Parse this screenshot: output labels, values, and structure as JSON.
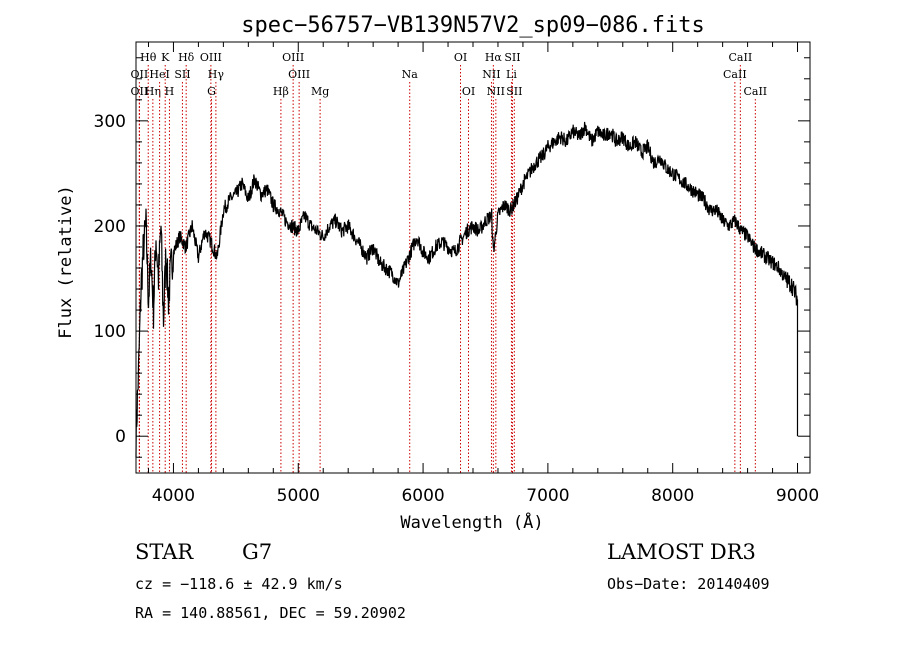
{
  "chart_data": {
    "type": "line",
    "title": "spec−56757−VB139N57V2_sp09−086.fits",
    "xlabel": "Wavelength (Å)",
    "ylabel": "Flux (relative)",
    "xlim": [
      3700,
      9100
    ],
    "ylim": [
      -35,
      375
    ],
    "xticks": [
      4000,
      5000,
      6000,
      7000,
      8000,
      9000
    ],
    "xtick_labels": [
      "4000",
      "5000",
      "6000",
      "7000",
      "8000",
      "9000"
    ],
    "yticks": [
      0,
      100,
      200,
      300
    ],
    "ytick_labels": [
      "0",
      "100",
      "200",
      "300"
    ],
    "series": [
      {
        "name": "flux",
        "x": [
          3700,
          3720,
          3740,
          3760,
          3780,
          3800,
          3820,
          3840,
          3860,
          3880,
          3900,
          3920,
          3940,
          3960,
          3980,
          4000,
          4050,
          4100,
          4150,
          4200,
          4250,
          4300,
          4350,
          4400,
          4450,
          4500,
          4550,
          4600,
          4650,
          4700,
          4750,
          4800,
          4850,
          4900,
          4950,
          5000,
          5050,
          5100,
          5150,
          5200,
          5250,
          5300,
          5350,
          5400,
          5450,
          5500,
          5550,
          5600,
          5650,
          5700,
          5750,
          5800,
          5850,
          5900,
          5950,
          6000,
          6050,
          6100,
          6150,
          6200,
          6250,
          6300,
          6350,
          6400,
          6450,
          6500,
          6550,
          6563,
          6600,
          6650,
          6700,
          6750,
          6800,
          6850,
          6900,
          6950,
          7000,
          7050,
          7100,
          7150,
          7200,
          7250,
          7300,
          7350,
          7400,
          7450,
          7500,
          7550,
          7600,
          7650,
          7700,
          7750,
          7800,
          7850,
          7900,
          7950,
          8000,
          8050,
          8100,
          8150,
          8200,
          8250,
          8300,
          8350,
          8400,
          8450,
          8500,
          8550,
          8600,
          8650,
          8700,
          8750,
          8800,
          8850,
          8900,
          8950,
          9000
        ],
        "y": [
          0,
          60,
          140,
          180,
          200,
          130,
          170,
          120,
          190,
          150,
          200,
          110,
          175,
          130,
          160,
          175,
          190,
          180,
          200,
          170,
          195,
          185,
          170,
          215,
          225,
          230,
          240,
          225,
          245,
          230,
          235,
          220,
          215,
          205,
          200,
          195,
          210,
          200,
          195,
          190,
          200,
          205,
          195,
          200,
          190,
          180,
          170,
          180,
          165,
          160,
          155,
          145,
          160,
          175,
          190,
          175,
          170,
          180,
          185,
          180,
          175,
          185,
          195,
          200,
          195,
          205,
          210,
          175,
          210,
          220,
          215,
          225,
          240,
          250,
          260,
          265,
          275,
          280,
          285,
          280,
          290,
          285,
          295,
          280,
          290,
          285,
          290,
          280,
          285,
          275,
          280,
          270,
          275,
          260,
          265,
          255,
          250,
          245,
          240,
          235,
          230,
          225,
          215,
          215,
          205,
          200,
          205,
          195,
          190,
          180,
          175,
          170,
          165,
          160,
          150,
          145,
          130
        ]
      }
    ],
    "spectral_lines": [
      {
        "label": "OII",
        "wavelength": 3727,
        "row": 2
      },
      {
        "label": "OII",
        "wavelength": 3727,
        "row": 3
      },
      {
        "label": "Hθ",
        "wavelength": 3798,
        "row": 1
      },
      {
        "label": "Hη",
        "wavelength": 3835,
        "row": 3
      },
      {
        "label": "HeI",
        "wavelength": 3889,
        "row": 2
      },
      {
        "label": "K",
        "wavelength": 3934,
        "row": 1
      },
      {
        "label": "H",
        "wavelength": 3968,
        "row": 3
      },
      {
        "label": "SII",
        "wavelength": 4072,
        "row": 2
      },
      {
        "label": "Hδ",
        "wavelength": 4102,
        "row": 1
      },
      {
        "label": "OIII",
        "wavelength": 4300,
        "row": 1
      },
      {
        "label": "Hγ",
        "wavelength": 4340,
        "row": 2
      },
      {
        "label": "G",
        "wavelength": 4305,
        "row": 3
      },
      {
        "label": "Hβ",
        "wavelength": 4861,
        "row": 3
      },
      {
        "label": "OIII",
        "wavelength": 4959,
        "row": 1
      },
      {
        "label": "OIII",
        "wavelength": 5007,
        "row": 2
      },
      {
        "label": "Mg",
        "wavelength": 5175,
        "row": 3
      },
      {
        "label": "Na",
        "wavelength": 5893,
        "row": 2
      },
      {
        "label": "OI",
        "wavelength": 6300,
        "row": 1
      },
      {
        "label": "OI",
        "wavelength": 6364,
        "row": 3
      },
      {
        "label": "Hα",
        "wavelength": 6563,
        "row": 1
      },
      {
        "label": "NII",
        "wavelength": 6548,
        "row": 2
      },
      {
        "label": "NII",
        "wavelength": 6583,
        "row": 3
      },
      {
        "label": "SII",
        "wavelength": 6716,
        "row": 1
      },
      {
        "label": "Li",
        "wavelength": 6708,
        "row": 2
      },
      {
        "label": "SII",
        "wavelength": 6731,
        "row": 3
      },
      {
        "label": "CaII",
        "wavelength": 8542,
        "row": 1
      },
      {
        "label": "CaII",
        "wavelength": 8498,
        "row": 2
      },
      {
        "label": "CaII",
        "wavelength": 8662,
        "row": 3
      }
    ],
    "line_color": "#000000",
    "marker_color": "#cc0000"
  },
  "info": {
    "class": "STAR",
    "subclass": "G7",
    "survey": "LAMOST DR3",
    "cz": "cz = −118.6 ± 42.9 km/s",
    "obs_date": "Obs−Date: 20140409",
    "coords": "RA = 140.88561, DEC =  59.20902"
  }
}
